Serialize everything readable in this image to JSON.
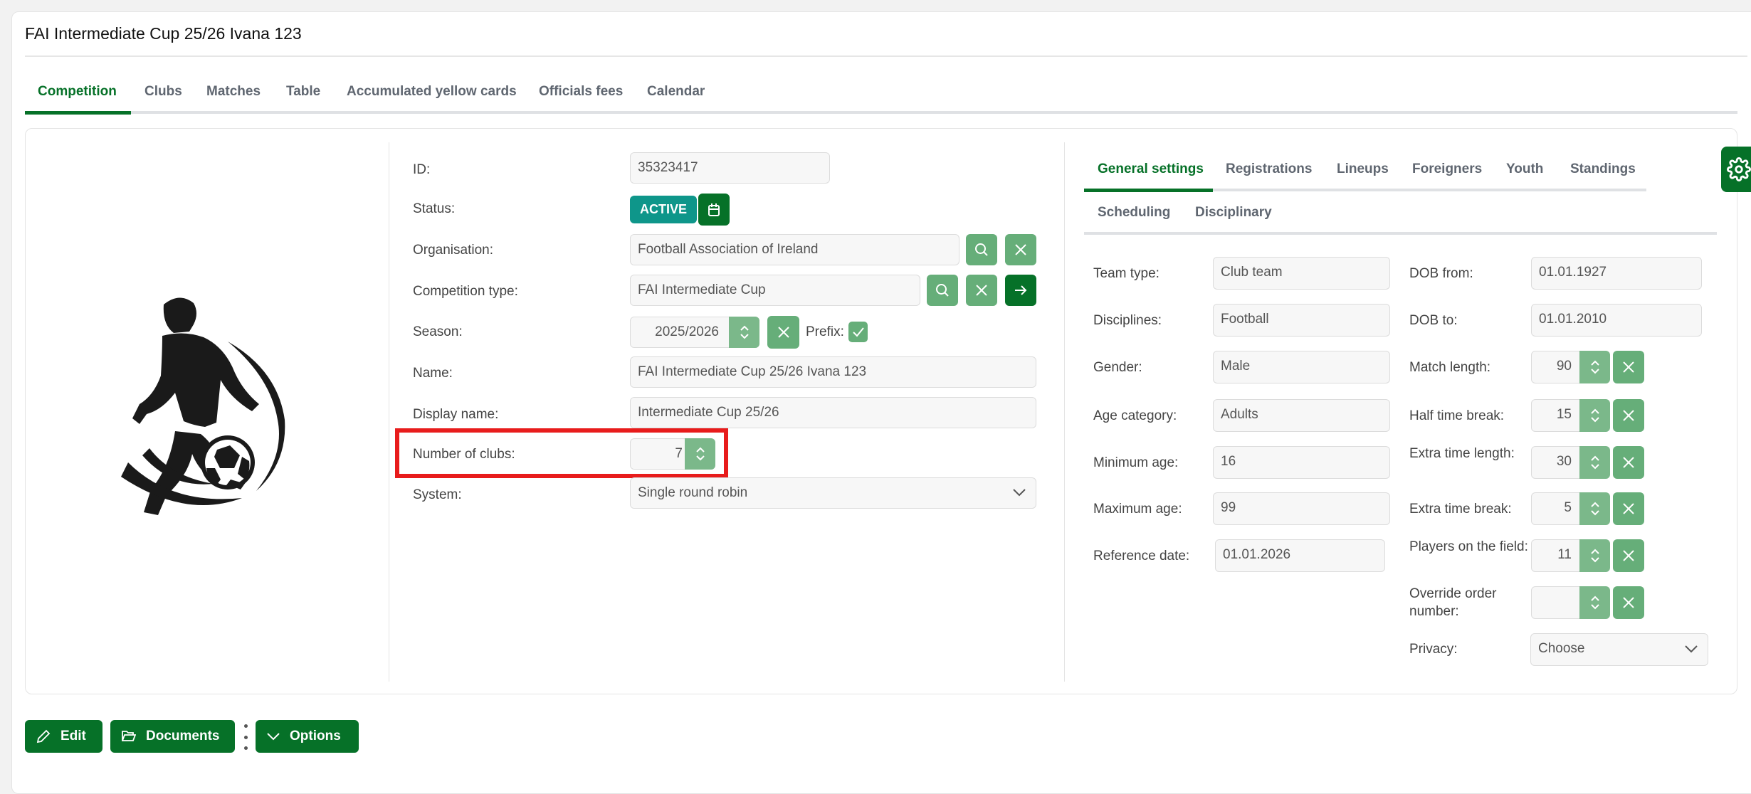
{
  "title": "FAI Intermediate Cup 25/26 Ivana 123",
  "main_tabs": [
    "Competition",
    "Clubs",
    "Matches",
    "Table",
    "Accumulated yellow cards",
    "Officials fees",
    "Calendar"
  ],
  "colors": {
    "primary": "#067128",
    "light_green": "#66ae79",
    "status_active": "#0e968a",
    "highlight": "#e81c1c"
  },
  "form": {
    "id": {
      "label": "ID:",
      "value": "35323417"
    },
    "status": {
      "label": "Status:",
      "value": "ACTIVE"
    },
    "organisation": {
      "label": "Organisation:",
      "value": "Football Association of Ireland"
    },
    "competition_type": {
      "label": "Competition type:",
      "value": "FAI Intermediate Cup"
    },
    "season": {
      "label": "Season:",
      "value": "2025/2026",
      "prefix_label": "Prefix:",
      "prefix_checked": true
    },
    "name": {
      "label": "Name:",
      "value": "FAI Intermediate Cup 25/26 Ivana 123"
    },
    "display_name": {
      "label": "Display name:",
      "value": "Intermediate Cup 25/26"
    },
    "number_of_clubs": {
      "label": "Number of clubs:",
      "value": "7"
    },
    "system": {
      "label": "System:",
      "value": "Single round robin"
    }
  },
  "settings_tabs": [
    "General settings",
    "Registrations",
    "Lineups",
    "Foreigners",
    "Youth",
    "Standings",
    "Scheduling",
    "Disciplinary"
  ],
  "general": {
    "left": [
      {
        "label": "Team type:",
        "value": "Club team"
      },
      {
        "label": "Disciplines:",
        "value": "Football"
      },
      {
        "label": "Gender:",
        "value": "Male"
      },
      {
        "label": "Age category:",
        "value": "Adults"
      },
      {
        "label": "Minimum age:",
        "value": "16"
      },
      {
        "label": "Maximum age:",
        "value": "99"
      },
      {
        "label": "Reference date:",
        "value": "01.01.2026"
      }
    ],
    "dob_from": {
      "label": "DOB from:",
      "value": "01.01.1927"
    },
    "dob_to": {
      "label": "DOB to:",
      "value": "01.01.2010"
    },
    "spinners": [
      {
        "label": "Match length:",
        "value": "90"
      },
      {
        "label": "Half time break:",
        "value": "15"
      },
      {
        "label": "Extra time length:",
        "value": "30"
      },
      {
        "label": "Extra time break:",
        "value": "5"
      },
      {
        "label": "Players on the field:",
        "value": "11"
      },
      {
        "label": "Override order number:",
        "value": ""
      }
    ],
    "privacy": {
      "label": "Privacy:",
      "value": "Choose"
    }
  },
  "actions": {
    "edit": "Edit",
    "documents": "Documents",
    "options": "Options"
  }
}
